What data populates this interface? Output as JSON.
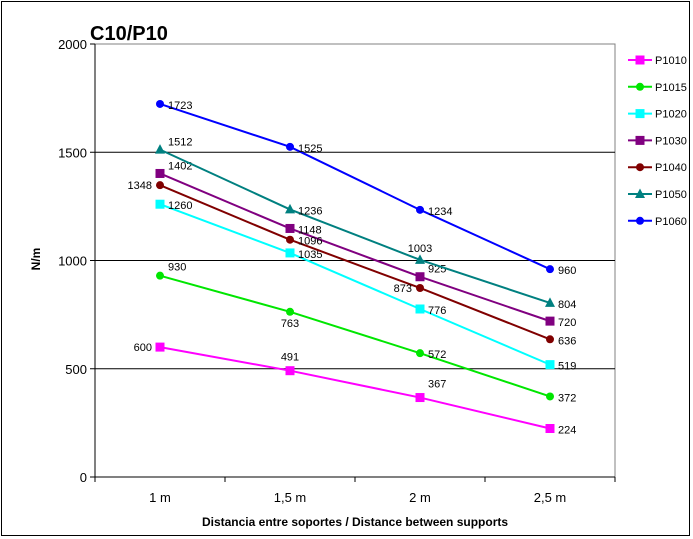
{
  "chart_data": {
    "type": "line",
    "title": "C10/P10",
    "xlabel": "Distancia entre soportes / Distance between supports",
    "ylabel": "N/m",
    "categories": [
      "1 m",
      "1,5 m",
      "2 m",
      "2,5 m"
    ],
    "ylim": [
      0,
      2000
    ],
    "yticks": [
      0,
      500,
      1000,
      1500,
      2000
    ],
    "grid": "horizontal",
    "legend_position": "right",
    "series": [
      {
        "name": "P1010",
        "color": "#ff00ff",
        "marker": "square",
        "values": [
          600,
          491,
          367,
          224
        ]
      },
      {
        "name": "P1015",
        "color": "#00e600",
        "marker": "circle",
        "values": [
          930,
          763,
          572,
          372
        ]
      },
      {
        "name": "P1020",
        "color": "#00ffff",
        "marker": "square",
        "values": [
          1260,
          1035,
          776,
          519
        ]
      },
      {
        "name": "P1030",
        "color": "#800080",
        "marker": "square",
        "values": [
          1402,
          1148,
          925,
          720
        ]
      },
      {
        "name": "P1040",
        "color": "#800000",
        "marker": "circle",
        "values": [
          1348,
          1096,
          873,
          636
        ]
      },
      {
        "name": "P1050",
        "color": "#008080",
        "marker": "triangle",
        "values": [
          1512,
          1236,
          1003,
          804
        ]
      },
      {
        "name": "P1060",
        "color": "#0000ff",
        "marker": "circle",
        "values": [
          1723,
          1525,
          1234,
          960
        ]
      }
    ]
  }
}
